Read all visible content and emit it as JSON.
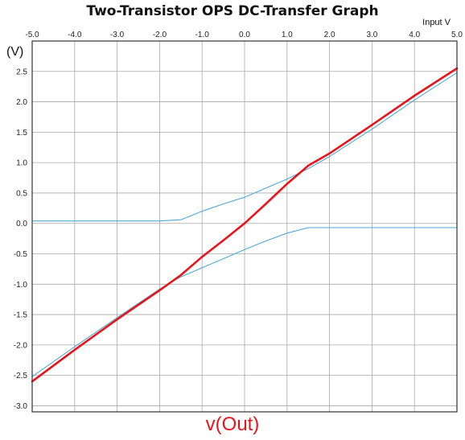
{
  "chart_data": {
    "type": "line",
    "title": "Two-Transistor OPS DC-Transfer Graph",
    "xlabel": "Input V",
    "ylabel": "(V)",
    "xlim": [
      -5.0,
      5.0
    ],
    "ylim": [
      -3.1,
      3.0
    ],
    "x_ticks": [
      "-5.0",
      "-4.0",
      "-3.0",
      "-2.0",
      "-1.0",
      "0.0",
      "1.0",
      "2.0",
      "3.0",
      "4.0",
      "5.0"
    ],
    "y_ticks": [
      "2.5",
      "2.0",
      "1.5",
      "1.0",
      "0.5",
      "0.0",
      "-0.5",
      "-1.0",
      "-1.5",
      "-2.0",
      "-2.5",
      "-3.0"
    ],
    "grid": true,
    "legend": "none",
    "series_label": "v(Out)",
    "series": [
      {
        "name": "v(Out)",
        "color": "#e8141b",
        "x": [
          -5.0,
          -4.0,
          -3.0,
          -2.0,
          -1.5,
          -1.0,
          -0.5,
          0.0,
          0.5,
          1.0,
          1.5,
          2.0,
          3.0,
          4.0,
          5.0
        ],
        "y": [
          -2.6,
          -2.08,
          -1.58,
          -1.1,
          -0.85,
          -0.55,
          -0.28,
          0.0,
          0.32,
          0.65,
          0.95,
          1.15,
          1.62,
          2.1,
          2.55
        ]
      },
      {
        "color": "#4fa8d8",
        "x": [
          -5.0,
          -4.0,
          -3.0,
          -2.0,
          -1.5,
          -1.0,
          -0.5,
          0.0,
          0.5,
          1.0,
          1.5,
          2.0,
          3.0,
          4.0,
          5.0
        ],
        "y": [
          0.04,
          0.04,
          0.04,
          0.04,
          0.06,
          0.2,
          0.32,
          0.43,
          0.58,
          0.73,
          0.9,
          1.1,
          1.55,
          2.03,
          2.48
        ]
      },
      {
        "color": "#4fa8d8",
        "x": [
          -5.0,
          -4.0,
          -3.0,
          -2.0,
          -1.5,
          -1.0,
          -0.5,
          0.0,
          0.5,
          1.0,
          1.5,
          2.0,
          3.0,
          4.0,
          5.0
        ],
        "y": [
          -2.52,
          -2.03,
          -1.55,
          -1.08,
          -0.88,
          -0.73,
          -0.58,
          -0.43,
          -0.29,
          -0.16,
          -0.07,
          -0.07,
          -0.07,
          -0.07,
          -0.07
        ]
      }
    ]
  }
}
